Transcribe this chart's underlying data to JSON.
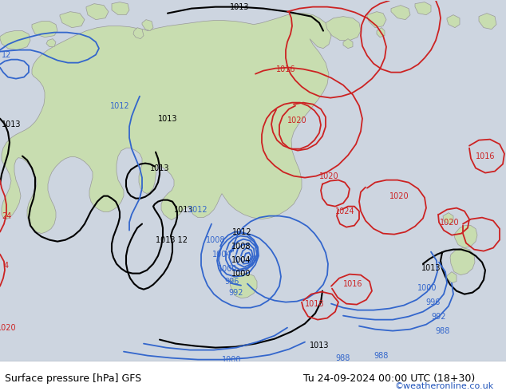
{
  "footer_left": "Surface pressure [hPa] GFS",
  "footer_right": "Tu 24-09-2024 00:00 UTC (18+30)",
  "footer_url": "©weatheronline.co.uk",
  "bg_color": "#cdd5e0",
  "land_color": "#c8ddb0",
  "land_edge": "#999999",
  "fig_width": 6.34,
  "fig_height": 4.9,
  "dpi": 100,
  "footer_font_size": 9,
  "footer_url_color": "#2255bb"
}
